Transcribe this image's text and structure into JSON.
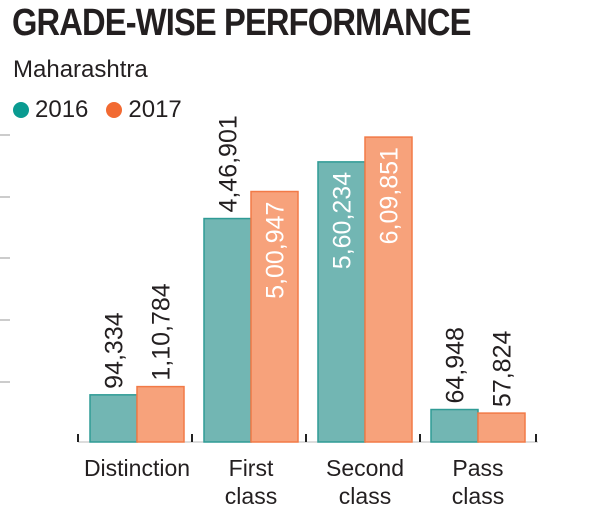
{
  "title": "GRADE-WISE PERFORMANCE",
  "subtitle": "Maharashtra",
  "colors": {
    "2016": "#72b6b3",
    "2017": "#f7a27b",
    "2016_stroke": "#2f9b95",
    "2017_stroke": "#f27a47",
    "dot_2016": "#0a9b91",
    "dot_2017": "#f26a32"
  },
  "chart_data": {
    "type": "bar",
    "categories": [
      "Distinction",
      "First class",
      "Second class",
      "Pass class"
    ],
    "category_lines": [
      [
        "Distinction"
      ],
      [
        "First",
        "class"
      ],
      [
        "Second",
        "class"
      ],
      [
        "Pass",
        "class"
      ]
    ],
    "series": [
      {
        "name": "2016",
        "values": [
          94334,
          446901,
          560234,
          64948
        ],
        "labels": [
          "94,334",
          "4,46,901",
          "5,60,234",
          "64,948"
        ]
      },
      {
        "name": "2017",
        "values": [
          110784,
          500947,
          609851,
          57824
        ],
        "labels": [
          "1,10,784",
          "5,00,947",
          "6,09,851",
          "57,824"
        ]
      }
    ],
    "ylim": [
      0,
      700000
    ],
    "legend": "top-left",
    "grid": true
  }
}
